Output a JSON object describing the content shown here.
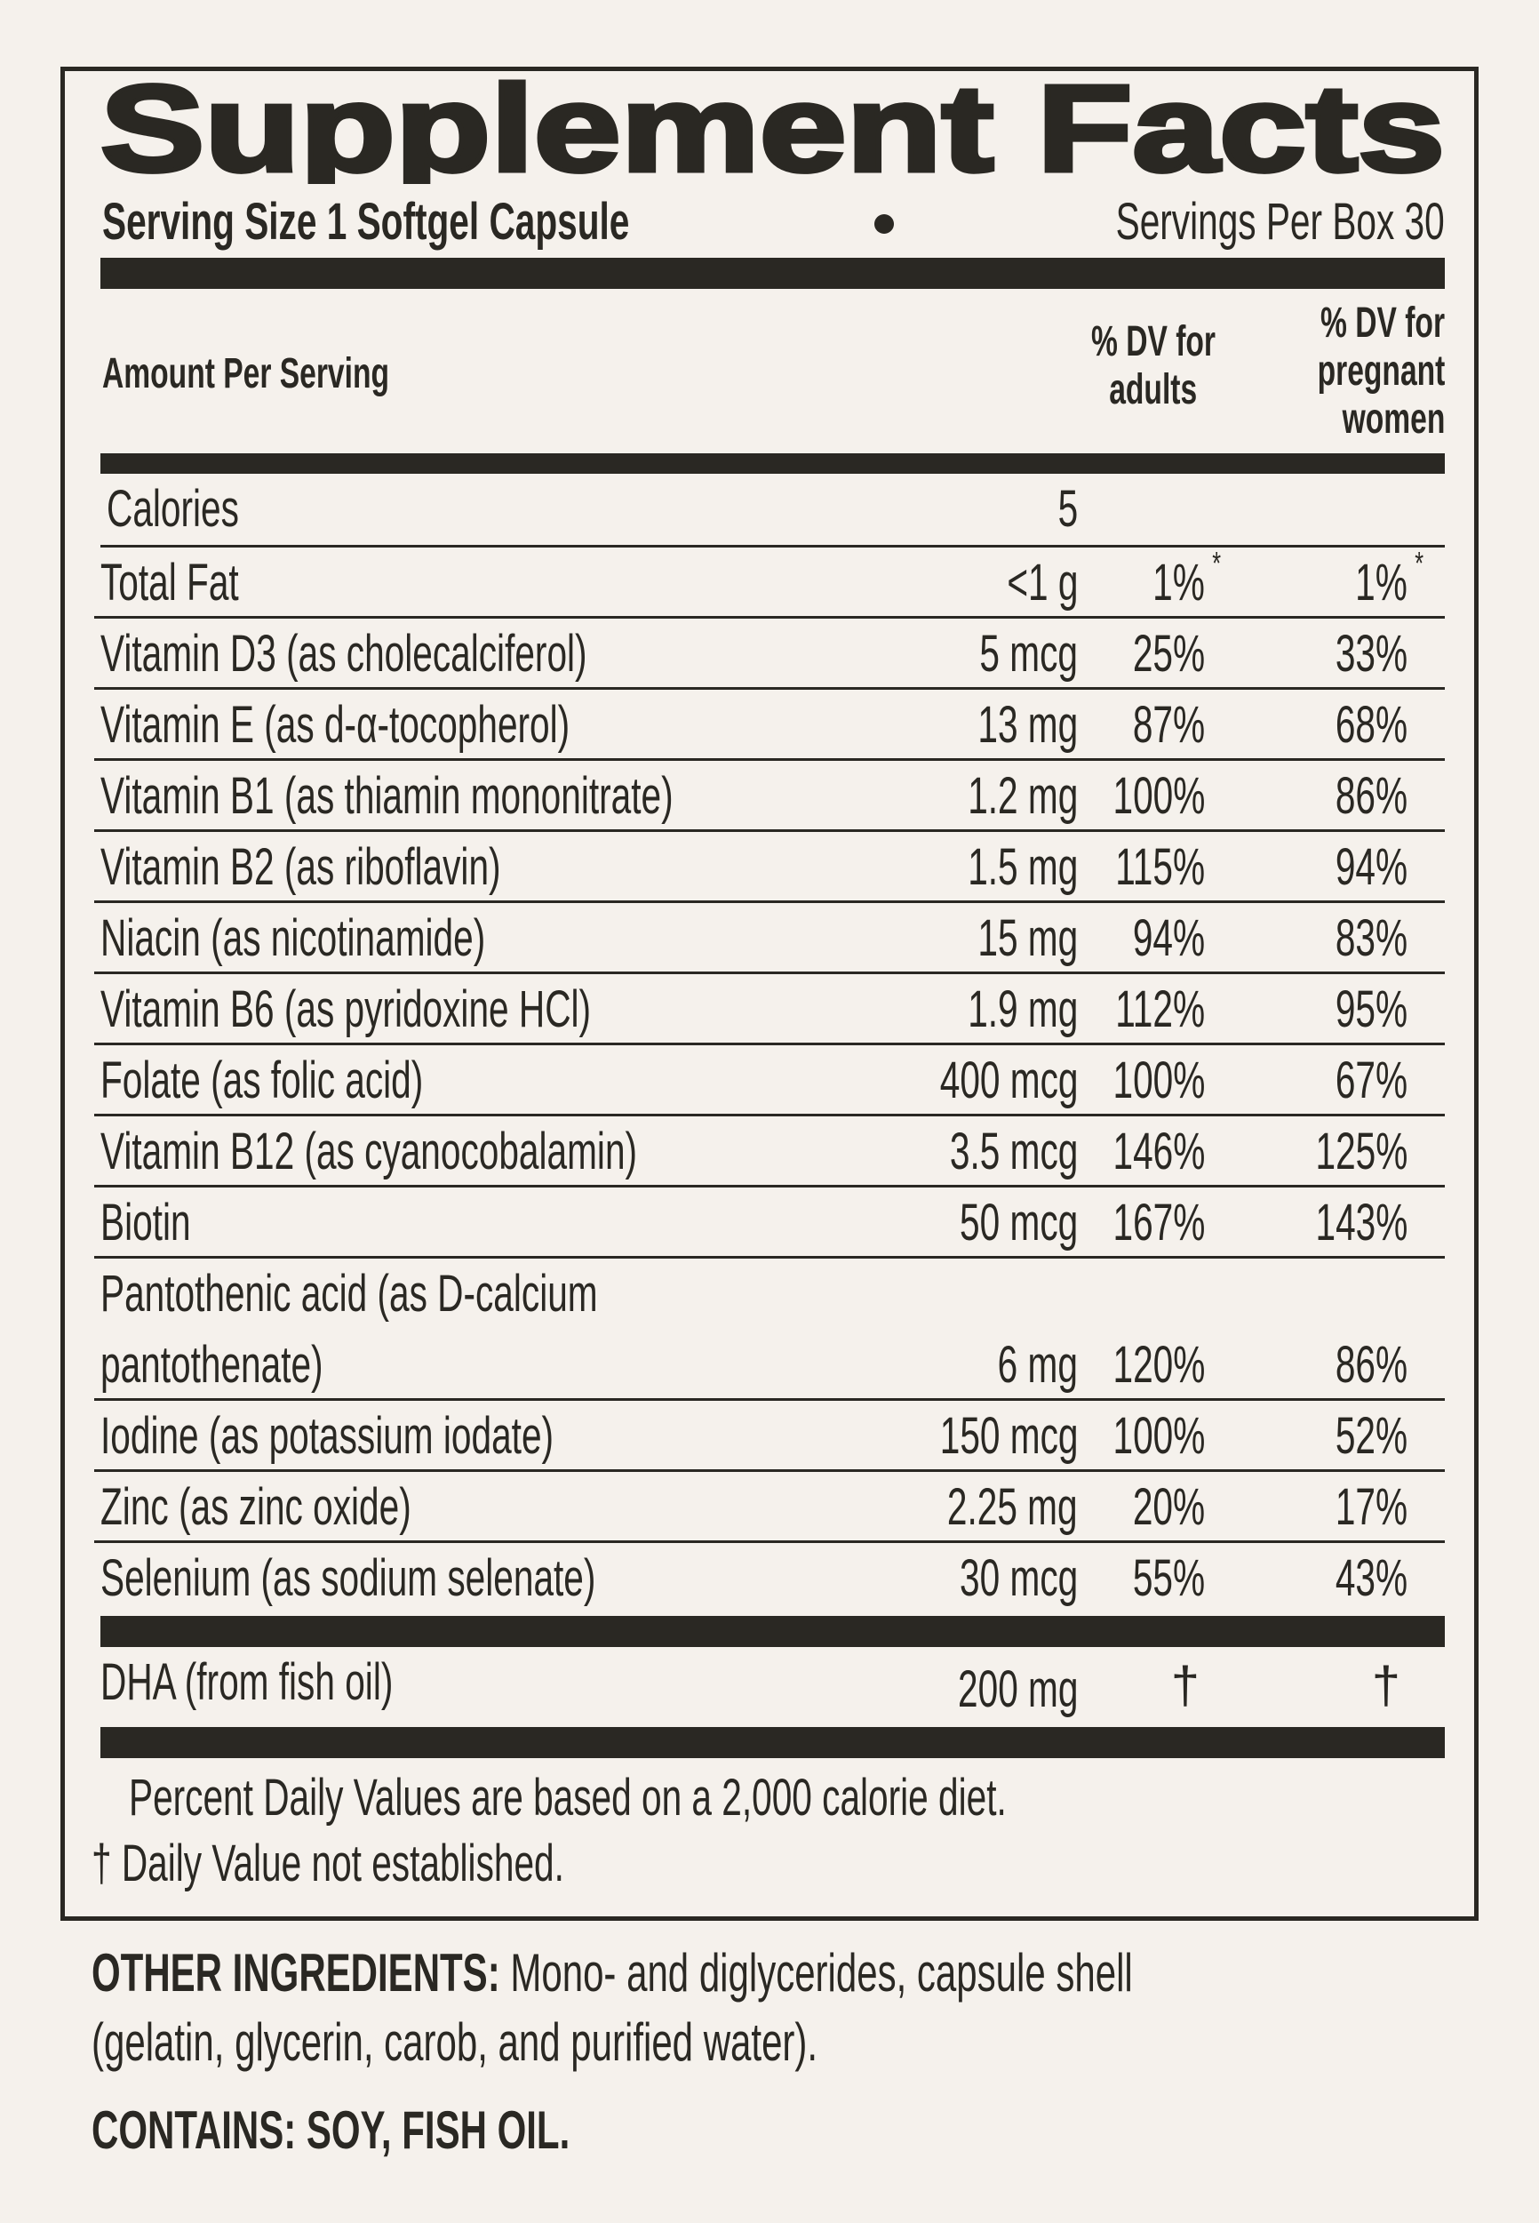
{
  "title": "Supplement Facts",
  "serving_size": "Serving Size 1 Softgel Capsule",
  "servings_per": "Servings Per Box 30",
  "header": {
    "amount": "Amount Per Serving",
    "dv_adults": [
      "% DV for",
      "adults"
    ],
    "dv_pregnant": [
      "% DV for",
      "pregnant",
      "women"
    ]
  },
  "rows": [
    {
      "name": "Calories",
      "amount": "5",
      "dv_adults": "",
      "dv_pregnant": ""
    },
    {
      "name": "Total Fat",
      "amount": "<1 g",
      "dv_adults": "1%",
      "dv_pregnant": "1%",
      "mark": "*"
    },
    {
      "name": "Vitamin D3 (as cholecalciferol)",
      "amount": "5 mcg",
      "dv_adults": "25%",
      "dv_pregnant": "33%"
    },
    {
      "name": "Vitamin E (as d-α-tocopherol)",
      "amount": "13 mg",
      "dv_adults": "87%",
      "dv_pregnant": "68%"
    },
    {
      "name": "Vitamin B1 (as thiamin mononitrate)",
      "amount": "1.2 mg",
      "dv_adults": "100%",
      "dv_pregnant": "86%"
    },
    {
      "name": "Vitamin B2 (as riboflavin)",
      "amount": "1.5 mg",
      "dv_adults": "115%",
      "dv_pregnant": "94%"
    },
    {
      "name": "Niacin (as nicotinamide)",
      "amount": "15 mg",
      "dv_adults": "94%",
      "dv_pregnant": "83%"
    },
    {
      "name": "Vitamin B6 (as pyridoxine HCl)",
      "amount": "1.9 mg",
      "dv_adults": "112%",
      "dv_pregnant": "95%"
    },
    {
      "name": "Folate (as folic acid)",
      "amount": "400 mcg",
      "dv_adults": "100%",
      "dv_pregnant": "67%"
    },
    {
      "name": "Vitamin B12 (as cyanocobalamin)",
      "amount": "3.5 mcg",
      "dv_adults": "146%",
      "dv_pregnant": "125%"
    },
    {
      "name": "Biotin",
      "amount": "50 mcg",
      "dv_adults": "167%",
      "dv_pregnant": "143%"
    },
    {
      "name": "Pantothenic acid (as D-calcium pantothenate)",
      "amount": "6 mg",
      "dv_adults": "120%",
      "dv_pregnant": "86%"
    },
    {
      "name": "Iodine (as potassium iodate)",
      "amount": "150 mcg",
      "dv_adults": "100%",
      "dv_pregnant": "52%"
    },
    {
      "name": "Zinc (as zinc oxide)",
      "amount": "2.25 mg",
      "dv_adults": "20%",
      "dv_pregnant": "17%"
    },
    {
      "name": "Selenium (as sodium selenate)",
      "amount": "30 mcg",
      "dv_adults": "55%",
      "dv_pregnant": "43%"
    }
  ],
  "dha": {
    "name": "DHA (from fish oil)",
    "amount": "200 mg",
    "dv_adults": "†",
    "dv_pregnant": "†"
  },
  "footnotes": [
    "Percent Daily Values are based on a 2,000 calorie diet.",
    "† Daily Value not established."
  ],
  "other_ingredients": {
    "label": "OTHER INGREDIENTS:",
    "text1": "Mono- and diglycerides, capsule shell",
    "text2": "(gelatin, glycerin, carob, and purified water)."
  },
  "contains": "CONTAINS: SOY, FISH OIL."
}
